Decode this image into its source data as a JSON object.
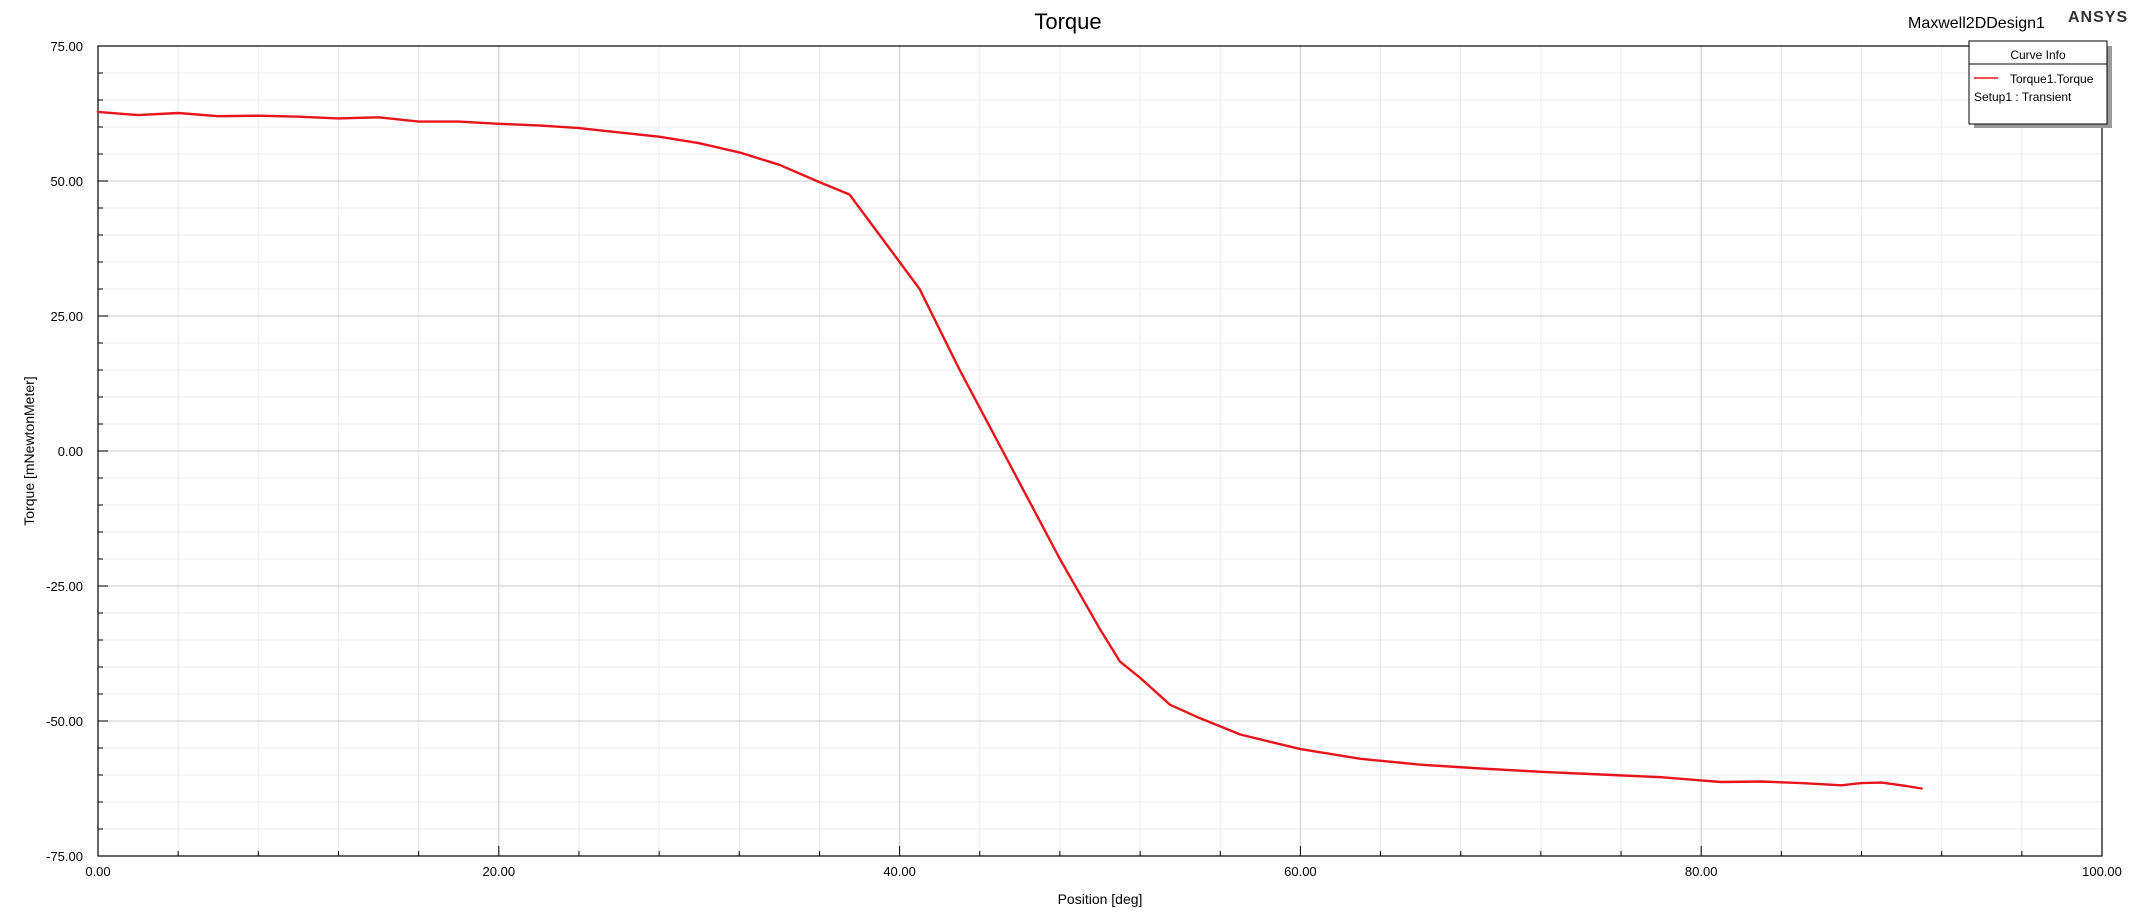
{
  "header": {
    "design_name": "Maxwell2DDesign1",
    "brand": "ANSYS"
  },
  "legend": {
    "title": "Curve Info",
    "entries": [
      {
        "name": "Torque1.Torque",
        "subtitle": "Setup1 : Transient",
        "color": "#e8141c"
      }
    ]
  },
  "chart_data": {
    "type": "line",
    "title": "Torque",
    "xlabel": "Position [deg]",
    "ylabel": "Torque [mNewtonMeter]",
    "xlim": [
      0,
      100
    ],
    "ylim": [
      -75,
      75
    ],
    "x_ticks": [
      "0.00",
      "20.00",
      "40.00",
      "60.00",
      "80.00",
      "100.00"
    ],
    "y_ticks": [
      "75.00",
      "50.00",
      "25.00",
      "0.00",
      "-25.00",
      "-50.00",
      "-75.00"
    ],
    "grid": true,
    "legend_position": "top-right",
    "series": [
      {
        "name": "Torque1.Torque",
        "color": "#e8141c",
        "x": [
          0,
          2,
          4,
          6,
          8,
          10,
          12,
          14,
          16,
          18,
          20,
          22,
          24,
          26,
          28,
          30,
          32,
          34,
          36,
          37.5,
          40,
          41,
          43,
          45,
          47,
          48,
          50,
          50.5,
          51,
          52,
          53.5,
          55,
          57,
          60,
          63,
          66,
          69,
          72,
          75,
          78,
          80,
          81,
          83,
          85,
          87,
          88,
          89,
          90,
          91
        ],
        "y": [
          62.8,
          62.2,
          62.6,
          62.0,
          62.1,
          61.9,
          61.6,
          61.8,
          61.0,
          61.0,
          60.6,
          60.3,
          59.8,
          59.0,
          58.2,
          57.0,
          55.3,
          53.0,
          49.8,
          47.5,
          35.0,
          30.0,
          15.0,
          1.0,
          -13.0,
          -20.0,
          -33.0,
          -36.0,
          -39.0,
          -42.0,
          -47.0,
          -49.5,
          -52.5,
          -55.2,
          -57.0,
          -58.1,
          -58.8,
          -59.4,
          -59.9,
          -60.4,
          -61.0,
          -61.3,
          -61.2,
          -61.5,
          -61.9,
          -61.5,
          -61.4,
          -61.9,
          -62.5
        ]
      }
    ]
  }
}
